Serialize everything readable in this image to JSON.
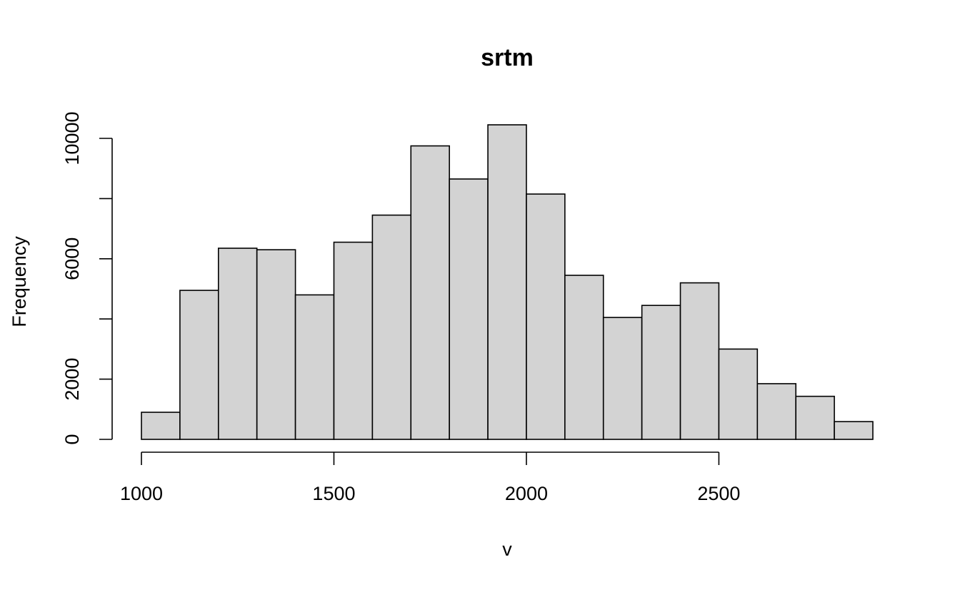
{
  "chart_data": {
    "type": "bar",
    "title": "srtm",
    "xlabel": "v",
    "ylabel": "Frequency",
    "bin_edges": [
      1000,
      1100,
      1200,
      1300,
      1400,
      1500,
      1600,
      1700,
      1800,
      1900,
      2000,
      2100,
      2200,
      2300,
      2400,
      2500,
      2600,
      2700,
      2800,
      2900
    ],
    "values": [
      900,
      4950,
      6350,
      6300,
      4800,
      6550,
      7450,
      9750,
      8650,
      10450,
      8150,
      5450,
      4050,
      4450,
      5200,
      3000,
      1850,
      1430,
      590
    ],
    "xlim": [
      1000,
      2900
    ],
    "ylim": [
      0,
      10450
    ],
    "x_ticks": [
      1000,
      1500,
      2000,
      2500
    ],
    "y_ticks": [
      0,
      2000,
      6000,
      10000
    ],
    "bar_color": "#d3d3d3",
    "grid": false,
    "legend": "none"
  }
}
